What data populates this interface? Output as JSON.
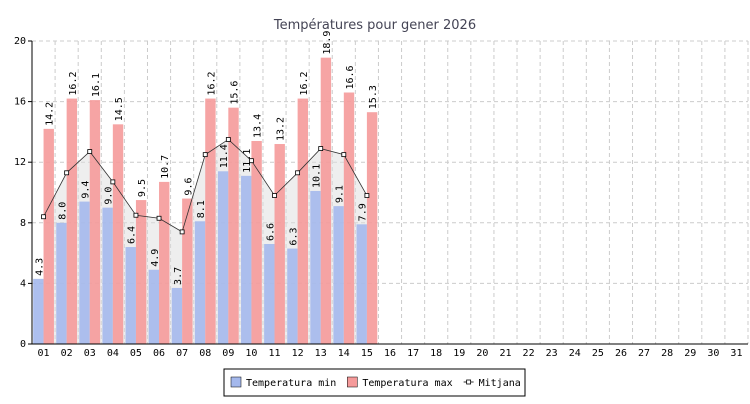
{
  "chart_data": {
    "type": "bar",
    "title": "Températures pour gener 2026",
    "categories": [
      "01",
      "02",
      "03",
      "04",
      "05",
      "06",
      "07",
      "08",
      "09",
      "10",
      "11",
      "12",
      "13",
      "14",
      "15",
      "16",
      "17",
      "18",
      "19",
      "20",
      "21",
      "22",
      "23",
      "24",
      "25",
      "26",
      "27",
      "28",
      "29",
      "30",
      "31"
    ],
    "series": [
      {
        "name": "Temperatura min",
        "color": "#a4b8ec",
        "values": [
          4.3,
          8.0,
          9.4,
          9.0,
          6.4,
          4.9,
          3.7,
          8.1,
          11.4,
          11.1,
          6.6,
          6.3,
          10.1,
          9.1,
          7.9,
          null,
          null,
          null,
          null,
          null,
          null,
          null,
          null,
          null,
          null,
          null,
          null,
          null,
          null,
          null,
          null
        ],
        "value_labels": [
          "4.3",
          "8.0",
          "9.4",
          "9.0",
          "6.4",
          "4.9",
          "3.7",
          "8.1",
          "11.4",
          "11.1",
          "6.6",
          "6.3",
          "10.1",
          "9.1",
          "7.9",
          null,
          null,
          null,
          null,
          null,
          null,
          null,
          null,
          null,
          null,
          null,
          null,
          null,
          null,
          null,
          null
        ]
      },
      {
        "name": "Temperatura max",
        "color": "#f59a9a",
        "values": [
          14.2,
          16.2,
          16.1,
          14.5,
          9.5,
          10.7,
          9.6,
          16.2,
          15.6,
          13.4,
          13.2,
          16.2,
          18.9,
          16.6,
          15.3,
          null,
          null,
          null,
          null,
          null,
          null,
          null,
          null,
          null,
          null,
          null,
          null,
          null,
          null,
          null,
          null
        ],
        "value_labels": [
          "14.2",
          "16.2",
          "16.1",
          "14.5",
          "9.5",
          "10.7",
          "9.6",
          "16.2",
          "15.6",
          "13.4",
          "13.2",
          "16.2",
          "18.9",
          "16.6",
          "15.3",
          null,
          null,
          null,
          null,
          null,
          null,
          null,
          null,
          null,
          null,
          null,
          null,
          null,
          null,
          null,
          null
        ]
      },
      {
        "name": "Mitjana",
        "type": "line",
        "color": "#333333",
        "values": [
          8.4,
          11.3,
          12.7,
          10.7,
          8.5,
          8.3,
          7.4,
          12.5,
          13.5,
          12.1,
          9.8,
          11.3,
          12.9,
          12.5,
          9.8,
          null,
          null,
          null,
          null,
          null,
          null,
          null,
          null,
          null,
          null,
          null,
          null,
          null,
          null,
          null,
          null
        ]
      }
    ],
    "ylim": [
      0,
      20
    ],
    "yticks": [
      0,
      4,
      8,
      12,
      16,
      20
    ],
    "grid": true,
    "legend": "bottom"
  }
}
